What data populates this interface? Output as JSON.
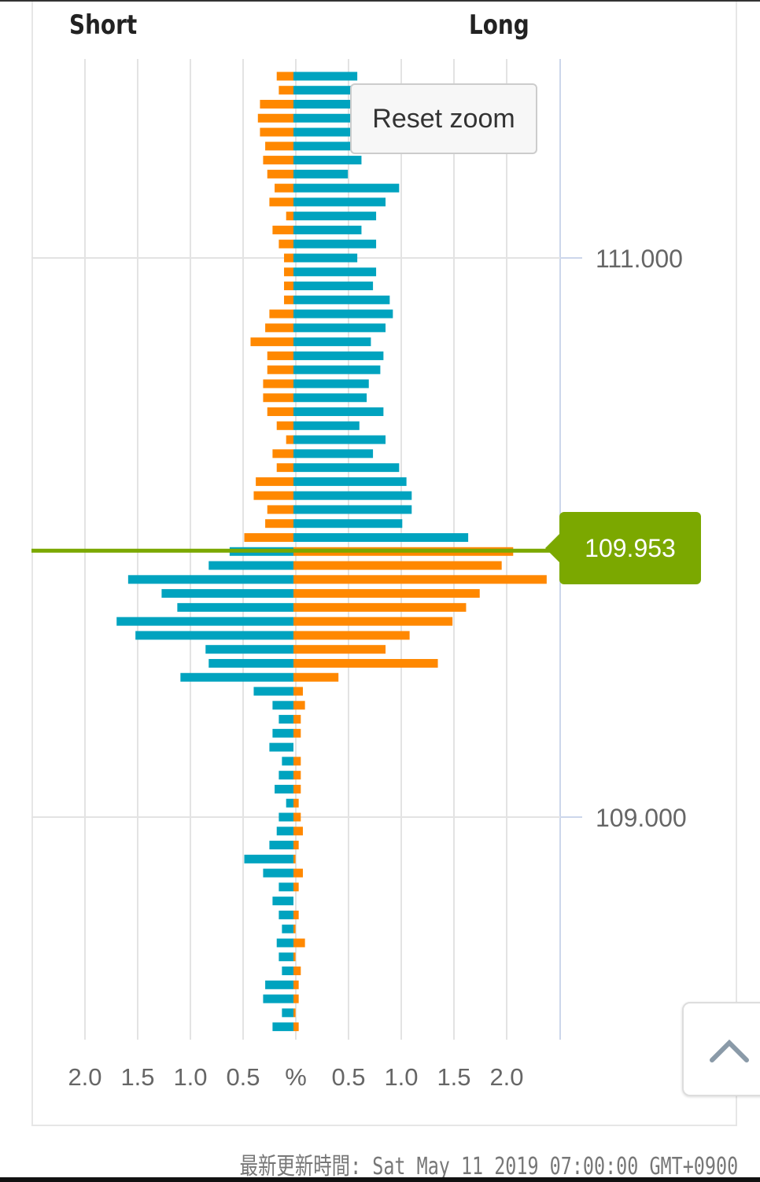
{
  "chart_data": {
    "type": "bar",
    "orientation": "horizontal-butterfly",
    "left_label": "Short",
    "right_label": "Long",
    "x_tick_labels": [
      "2.0",
      "1.5",
      "1.0",
      "0.5",
      "%",
      "0.5",
      "1.0",
      "1.5",
      "2.0"
    ],
    "x_ticks": [
      -2.0,
      -1.5,
      -1.0,
      -0.5,
      0,
      0.5,
      1.0,
      1.5,
      2.0
    ],
    "xlim": [
      -2.0,
      2.0
    ],
    "xunit": "%",
    "y_tick_labels": [
      "111.000",
      "109.000"
    ],
    "y_ticks": [
      111.0,
      109.0
    ],
    "current_price": 109.953,
    "current_price_label": "109.953",
    "colors": {
      "profit": "#00a3bf",
      "loss": "#ff8800",
      "current_price": "#7ba800"
    },
    "grid": true,
    "columns": [
      "price",
      "short",
      "long"
    ],
    "rows": [
      [
        111.65,
        0.16,
        0.61
      ],
      [
        111.6,
        0.14,
        0.55
      ],
      [
        111.55,
        0.32,
        0.55
      ],
      [
        111.5,
        0.34,
        0.55
      ],
      [
        111.45,
        0.32,
        0.55
      ],
      [
        111.4,
        0.27,
        0.55
      ],
      [
        111.35,
        0.29,
        0.65
      ],
      [
        111.3,
        0.25,
        0.52
      ],
      [
        111.25,
        0.18,
        1.01
      ],
      [
        111.2,
        0.23,
        0.88
      ],
      [
        111.15,
        0.07,
        0.79
      ],
      [
        111.1,
        0.2,
        0.65
      ],
      [
        111.05,
        0.14,
        0.79
      ],
      [
        111.0,
        0.09,
        0.61
      ],
      [
        110.95,
        0.09,
        0.79
      ],
      [
        110.9,
        0.09,
        0.76
      ],
      [
        110.85,
        0.09,
        0.92
      ],
      [
        110.8,
        0.23,
        0.95
      ],
      [
        110.75,
        0.27,
        0.88
      ],
      [
        110.7,
        0.41,
        0.74
      ],
      [
        110.65,
        0.25,
        0.86
      ],
      [
        110.6,
        0.25,
        0.83
      ],
      [
        110.55,
        0.29,
        0.72
      ],
      [
        110.5,
        0.29,
        0.7
      ],
      [
        110.45,
        0.25,
        0.86
      ],
      [
        110.4,
        0.16,
        0.63
      ],
      [
        110.35,
        0.07,
        0.88
      ],
      [
        110.3,
        0.2,
        0.76
      ],
      [
        110.25,
        0.16,
        1.01
      ],
      [
        110.2,
        0.36,
        1.08
      ],
      [
        110.15,
        0.38,
        1.13
      ],
      [
        110.1,
        0.25,
        1.13
      ],
      [
        110.05,
        0.27,
        1.04
      ],
      [
        110.0,
        0.47,
        1.67
      ],
      [
        109.95,
        0.61,
        2.1
      ],
      [
        109.9,
        0.81,
        1.99
      ],
      [
        109.85,
        1.58,
        2.42
      ],
      [
        109.8,
        1.26,
        1.78
      ],
      [
        109.75,
        1.11,
        1.65
      ],
      [
        109.7,
        1.69,
        1.52
      ],
      [
        109.65,
        1.51,
        1.11
      ],
      [
        109.6,
        0.84,
        0.88
      ],
      [
        109.55,
        0.81,
        1.38
      ],
      [
        109.5,
        1.08,
        0.43
      ],
      [
        109.45,
        0.38,
        0.09
      ],
      [
        109.4,
        0.2,
        0.11
      ],
      [
        109.35,
        0.14,
        0.07
      ],
      [
        109.3,
        0.2,
        0.07
      ],
      [
        109.25,
        0.23,
        0.0
      ],
      [
        109.2,
        0.11,
        0.07
      ],
      [
        109.15,
        0.14,
        0.07
      ],
      [
        109.1,
        0.18,
        0.07
      ],
      [
        109.05,
        0.07,
        0.05
      ],
      [
        109.0,
        0.14,
        0.07
      ],
      [
        108.95,
        0.16,
        0.09
      ],
      [
        108.9,
        0.23,
        0.05
      ],
      [
        108.85,
        0.47,
        0.02
      ],
      [
        108.8,
        0.29,
        0.09
      ],
      [
        108.75,
        0.14,
        0.05
      ],
      [
        108.7,
        0.2,
        0.0
      ],
      [
        108.65,
        0.14,
        0.05
      ],
      [
        108.6,
        0.11,
        0.02
      ],
      [
        108.55,
        0.16,
        0.11
      ],
      [
        108.5,
        0.14,
        0.02
      ],
      [
        108.45,
        0.11,
        0.07
      ],
      [
        108.4,
        0.27,
        0.05
      ],
      [
        108.35,
        0.29,
        0.05
      ],
      [
        108.3,
        0.11,
        0.02
      ],
      [
        108.25,
        0.2,
        0.05
      ]
    ]
  },
  "controls": {
    "reset_zoom": "Reset zoom",
    "scroll_top_icon": "chevron-up-icon"
  },
  "footer": {
    "updated": "最新更新時間: Sat May 11 2019 07:00:00 GMT+0900"
  }
}
